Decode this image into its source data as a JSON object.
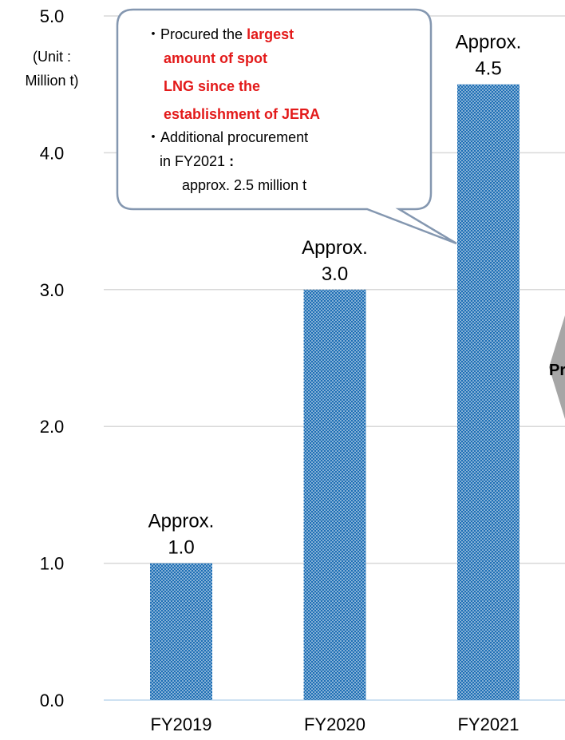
{
  "chart_data": {
    "type": "bar",
    "categories": [
      "FY2019",
      "FY2020",
      "FY2021"
    ],
    "values": [
      1.0,
      3.0,
      4.5
    ],
    "value_labels": [
      [
        "Approx.",
        "1.0"
      ],
      [
        "Approx.",
        "3.0"
      ],
      [
        "Approx.",
        "4.5"
      ]
    ],
    "color": "#1f6fb5",
    "ylim": [
      0,
      5
    ],
    "yticks": [
      {
        "value": 0,
        "label": "0.0"
      },
      {
        "value": 1,
        "label": "1.0"
      },
      {
        "value": 2,
        "label": "2.0"
      },
      {
        "value": 3,
        "label": "3.0"
      },
      {
        "value": 4,
        "label": "4.0"
      },
      {
        "value": 5,
        "label": "5.0"
      }
    ],
    "grid": true,
    "unit_label": [
      "(Unit :",
      "Million t)"
    ],
    "callout": {
      "lines": [
        [
          {
            "text": "・Procured the ",
            "style": "normal"
          },
          {
            "text": "largest",
            "style": "red"
          }
        ],
        [
          {
            "text": "amount of spot",
            "style": "red"
          }
        ],
        [
          {
            "text": "LNG since the",
            "style": "red"
          }
        ],
        [
          {
            "text": "establishment of JERA",
            "style": "red"
          }
        ],
        [
          {
            "text": "・Additional procurement",
            "style": "normal"
          }
        ],
        [
          {
            "text": "in FY2021 ",
            "style": "normal"
          },
          {
            "text": ":",
            "style": "bold"
          }
        ],
        [
          {
            "text": "approx. 2.5 million t",
            "style": "normal"
          }
        ]
      ]
    },
    "edge_text": "Pr"
  }
}
